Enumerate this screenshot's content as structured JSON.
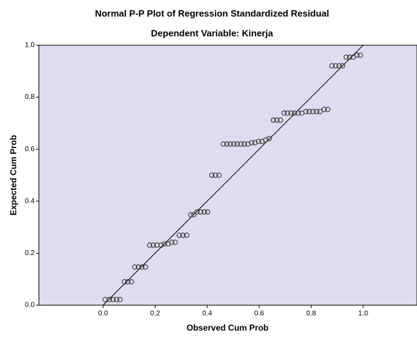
{
  "chart_data": {
    "type": "scatter",
    "title": "Normal P-P Plot of Regression Standardized Residual",
    "subtitle": "Dependent Variable: Kinerja",
    "x_label": "Observed Cum Prob",
    "y_label": "Expected Cum Prob",
    "x": [
      0.008,
      0.024,
      0.038,
      0.052,
      0.065,
      0.082,
      0.095,
      0.109,
      0.122,
      0.136,
      0.149,
      0.163,
      0.179,
      0.193,
      0.207,
      0.223,
      0.236,
      0.25,
      0.264,
      0.277,
      0.293,
      0.307,
      0.321,
      0.337,
      0.348,
      0.361,
      0.375,
      0.389,
      0.402,
      0.418,
      0.432,
      0.446,
      0.462,
      0.476,
      0.489,
      0.503,
      0.516,
      0.53,
      0.543,
      0.557,
      0.571,
      0.584,
      0.598,
      0.611,
      0.625,
      0.639,
      0.655,
      0.668,
      0.682,
      0.696,
      0.709,
      0.723,
      0.736,
      0.75,
      0.764,
      0.78,
      0.793,
      0.807,
      0.821,
      0.834,
      0.85,
      0.864,
      0.88,
      0.894,
      0.908,
      0.921,
      0.935,
      0.948,
      0.962,
      0.976,
      0.989
    ],
    "values": [
      0.022,
      0.022,
      0.022,
      0.022,
      0.022,
      0.09,
      0.09,
      0.09,
      0.147,
      0.147,
      0.147,
      0.147,
      0.231,
      0.231,
      0.231,
      0.231,
      0.236,
      0.236,
      0.242,
      0.242,
      0.269,
      0.269,
      0.269,
      0.348,
      0.348,
      0.359,
      0.359,
      0.359,
      0.359,
      0.5,
      0.5,
      0.5,
      0.62,
      0.62,
      0.62,
      0.62,
      0.62,
      0.62,
      0.62,
      0.62,
      0.625,
      0.625,
      0.63,
      0.63,
      0.636,
      0.641,
      0.712,
      0.712,
      0.712,
      0.739,
      0.739,
      0.739,
      0.739,
      0.739,
      0.739,
      0.745,
      0.745,
      0.745,
      0.745,
      0.745,
      0.753,
      0.753,
      0.921,
      0.921,
      0.921,
      0.921,
      0.954,
      0.954,
      0.954,
      0.962,
      0.962
    ],
    "color": "#333333",
    "xlim": [
      -0.247,
      1.207
    ],
    "ylim": [
      0,
      1
    ],
    "xticks": [
      {
        "value": 0,
        "label": "0.0"
      },
      0.2,
      0.4,
      0.6,
      0.8,
      {
        "value": 1,
        "label": "1.0"
      }
    ],
    "yticks": [
      {
        "value": 0,
        "label": "0.0"
      },
      0.2,
      0.4,
      0.6,
      0.8,
      {
        "value": 1,
        "label": "1.0"
      }
    ]
  }
}
